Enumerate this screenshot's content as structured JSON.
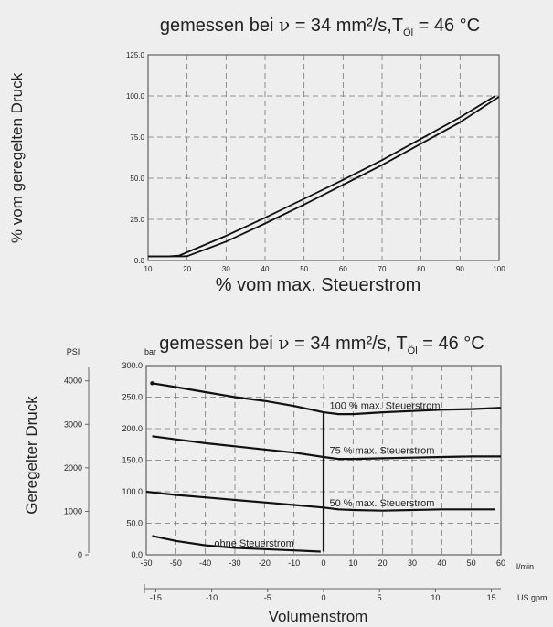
{
  "chart_data": [
    {
      "type": "line",
      "title_parts": {
        "prefix": "gemessen bei ",
        "nu": "ν",
        "mid": " = 34 mm²/s,T",
        "sub": "Öl",
        "suffix": " = 46 °C"
      },
      "xlabel": "% vom max. Steuerstrom",
      "ylabel": "% vom geregelten Druck",
      "xlim": [
        10,
        100
      ],
      "ylim": [
        0,
        125
      ],
      "x_ticks": [
        "10",
        "20",
        "30",
        "40",
        "50",
        "60",
        "70",
        "80",
        "90",
        "100"
      ],
      "y_ticks": [
        "0.0",
        "25.0",
        "50.0",
        "75.0",
        "100.0",
        "125.0"
      ],
      "grid": true,
      "series": [
        {
          "x": [
            10,
            15,
            18,
            20,
            25,
            30,
            40,
            50,
            60,
            70,
            80,
            90,
            99
          ],
          "y": [
            2.5,
            2.5,
            3,
            5,
            10,
            15,
            26,
            37.5,
            49,
            61,
            74,
            87,
            100
          ]
        },
        {
          "x": [
            10,
            18,
            20,
            21,
            25,
            30,
            40,
            50,
            60,
            70,
            80,
            90,
            100
          ],
          "y": [
            2.5,
            2.5,
            2.6,
            3.5,
            7,
            11.5,
            22.5,
            34,
            46,
            58,
            71,
            84,
            99.5
          ]
        }
      ]
    },
    {
      "type": "line",
      "title_parts": {
        "prefix": "gemessen bei ",
        "nu": "ν",
        "mid": " = 34 mm²/s, T",
        "sub": "Öl",
        "suffix": " = 46 °C"
      },
      "xlabel": "Volumenstrom",
      "ylabel": "Geregelter Druck",
      "x_unit": "l/min",
      "x2_unit": "US gpm",
      "y_unit": "bar",
      "y2_unit": "PSI",
      "xlim": [
        -60,
        60
      ],
      "ylim": [
        0,
        300
      ],
      "x_ticks": [
        "-60",
        "-50",
        "-40",
        "-30",
        "-20",
        "-10",
        "0",
        "10",
        "20",
        "30",
        "40",
        "50",
        "60"
      ],
      "y_ticks": [
        "0.0",
        "50.0",
        "100.0",
        "150.0",
        "200.0",
        "250.0",
        "300.0"
      ],
      "x2_ticks": [
        {
          "value": -15,
          "label": "-15"
        },
        {
          "value": -10,
          "label": "-10"
        },
        {
          "value": -5,
          "label": "-5"
        },
        {
          "value": 0,
          "label": "0"
        },
        {
          "value": 5,
          "label": "5"
        },
        {
          "value": 10,
          "label": "10"
        },
        {
          "value": 15,
          "label": "15"
        }
      ],
      "y2_ticks": [
        {
          "value": 0,
          "label": "0"
        },
        {
          "value": 1000,
          "label": "1000"
        },
        {
          "value": 2000,
          "label": "2000"
        },
        {
          "value": 3000,
          "label": "3000"
        },
        {
          "value": 4000,
          "label": "4000"
        }
      ],
      "grid": true,
      "series": [
        {
          "name": "100 % max. Steuerstrom",
          "x": [
            -58,
            -50,
            -40,
            -30,
            -20,
            -10,
            0,
            5,
            10,
            20,
            30,
            40,
            50,
            60
          ],
          "y": [
            272,
            266,
            258,
            250,
            244,
            236,
            226,
            223,
            223,
            226,
            228,
            230,
            231,
            233
          ]
        },
        {
          "name": "75 % max. Steuerstrom",
          "x": [
            -58,
            -50,
            -40,
            -30,
            -20,
            -10,
            0,
            5,
            10,
            20,
            30,
            40,
            50,
            60
          ],
          "y": [
            188,
            183,
            177,
            172,
            167,
            162,
            155,
            152,
            152,
            153,
            154,
            155,
            156,
            156
          ]
        },
        {
          "name": "50 % max. Steuerstrom",
          "x": [
            -60,
            -50,
            -40,
            -30,
            -20,
            -10,
            0,
            5,
            10,
            20,
            30,
            40,
            50,
            58
          ],
          "y": [
            100,
            95,
            91,
            87,
            83,
            79,
            75,
            72,
            71,
            70,
            71,
            72,
            72,
            72
          ]
        },
        {
          "name": "ohne Steuerstrom",
          "x": [
            -58,
            -50,
            -40,
            -30,
            -20,
            -10,
            -1
          ],
          "y": [
            30,
            22,
            15,
            11,
            9,
            7,
            5
          ]
        }
      ],
      "vertical_segment": {
        "x": 0,
        "y": [
          5,
          226
        ]
      }
    }
  ]
}
